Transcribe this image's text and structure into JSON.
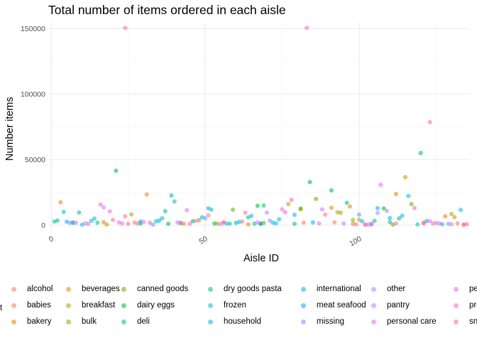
{
  "chart_data": {
    "type": "scatter",
    "title": "Total number of items ordered in each aisle",
    "xlabel": "Aisle ID",
    "ylabel": "Number items",
    "xlim": [
      -1,
      136
    ],
    "ylim": [
      -5000,
      155000
    ],
    "x_ticks": [
      0,
      50,
      100
    ],
    "x_tick_labels": [
      "0",
      "50",
      "100"
    ],
    "y_ticks": [
      0,
      50000,
      100000,
      150000
    ],
    "y_tick_labels": [
      "0",
      "50000",
      "100000",
      "150000"
    ],
    "grid": true,
    "legend_position": "bottom",
    "point_opacity": 0.55,
    "legend_cut_label": "t",
    "legend": [
      {
        "name": "alcohol",
        "color": "#F8766D"
      },
      {
        "name": "babies",
        "color": "#F07E4F"
      },
      {
        "name": "bakery",
        "color": "#E58700"
      },
      {
        "name": "beverages",
        "color": "#D39200"
      },
      {
        "name": "breakfast",
        "color": "#B79F00"
      },
      {
        "name": "bulk",
        "color": "#93AA00"
      },
      {
        "name": "canned goods",
        "color": "#5EB300"
      },
      {
        "name": "dairy eggs",
        "color": "#00BA38"
      },
      {
        "name": "deli",
        "color": "#00BF7D"
      },
      {
        "name": "dry goods pasta",
        "color": "#00C08D"
      },
      {
        "name": "frozen",
        "color": "#00BFC4"
      },
      {
        "name": "household",
        "color": "#00B9E3"
      },
      {
        "name": "international",
        "color": "#00B4EF"
      },
      {
        "name": "meat seafood",
        "color": "#00A9FF"
      },
      {
        "name": "missing",
        "color": "#619CFF"
      },
      {
        "name": "other",
        "color": "#9590FF"
      },
      {
        "name": "pantry",
        "color": "#C77CFF"
      },
      {
        "name": "personal care",
        "color": "#E76BF3"
      },
      {
        "name": "pet",
        "color": "#F564E3"
      },
      {
        "name": "produce",
        "color": "#FF61C3"
      },
      {
        "name": "snacks",
        "color": "#FF67A4"
      }
    ],
    "series": [
      {
        "name": "alcohol",
        "color": "#F8766D",
        "points": [
          [
            27,
            2000
          ],
          [
            28,
            1200
          ],
          [
            62,
            2700
          ],
          [
            124,
            1300
          ],
          [
            134,
            200
          ]
        ]
      },
      {
        "name": "babies",
        "color": "#F07E4F",
        "points": [
          [
            82,
            1900
          ],
          [
            92,
            2100
          ],
          [
            102,
            200
          ],
          [
            132,
            1300
          ]
        ]
      },
      {
        "name": "bakery",
        "color": "#E58700",
        "points": [
          [
            3,
            17400
          ],
          [
            17,
            2200
          ],
          [
            43,
            1100
          ],
          [
            112,
            23700
          ],
          [
            121,
            1900
          ],
          [
            128,
            6700
          ]
        ]
      },
      {
        "name": "beverages",
        "color": "#D39200",
        "points": [
          [
            7,
            2100
          ],
          [
            31,
            23400
          ],
          [
            64,
            600
          ],
          [
            77,
            16100
          ],
          [
            91,
            13300
          ],
          [
            97,
            14200
          ],
          [
            98,
            1000
          ],
          [
            115,
            36600
          ]
        ]
      },
      {
        "name": "breakfast",
        "color": "#B79F00",
        "points": [
          [
            26,
            8100
          ],
          [
            54,
            1200
          ],
          [
            93,
            9800
          ],
          [
            94,
            9400
          ],
          [
            100,
            4100
          ],
          [
            130,
            8400
          ],
          [
            131,
            6100
          ]
        ]
      },
      {
        "name": "bulk",
        "color": "#93AA00",
        "points": [
          [
            18,
            400
          ],
          [
            48,
            3800
          ],
          [
            81,
            12000
          ],
          [
            98,
            3900
          ]
        ]
      },
      {
        "name": "canned goods",
        "color": "#5EB300",
        "points": [
          [
            59,
            11700
          ],
          [
            69,
            1600
          ],
          [
            81,
            12700
          ],
          [
            86,
            20000
          ],
          [
            111,
            400
          ],
          [
            117,
            16000
          ]
        ]
      },
      {
        "name": "dairy eggs",
        "color": "#00BA38",
        "points": [
          [
            21,
            41500
          ],
          [
            38,
            1000
          ],
          [
            46,
            3000
          ],
          [
            53,
            1200
          ],
          [
            67,
            14700
          ],
          [
            68,
            1100
          ],
          [
            84,
            32800
          ],
          [
            91,
            26500
          ],
          [
            108,
            12700
          ],
          [
            120,
            55000
          ]
        ]
      },
      {
        "name": "deli",
        "color": "#00BF7D",
        "points": [
          [
            1,
            2700
          ],
          [
            2,
            3500
          ],
          [
            37,
            10600
          ],
          [
            69,
            14900
          ],
          [
            79,
            1000
          ],
          [
            96,
            17000
          ],
          [
            105,
            3200
          ],
          [
            113,
            5100
          ]
        ]
      },
      {
        "name": "dry goods pasta",
        "color": "#00C08D",
        "points": [
          [
            9,
            9600
          ],
          [
            15,
            1800
          ],
          [
            29,
            1100
          ],
          [
            39,
            22600
          ],
          [
            60,
            1700
          ],
          [
            64,
            5900
          ],
          [
            66,
            1100
          ],
          [
            110,
            2300
          ]
        ]
      },
      {
        "name": "frozen",
        "color": "#00BFC4",
        "points": [
          [
            4,
            10100
          ],
          [
            13,
            3300
          ],
          [
            34,
            2800
          ],
          [
            42,
            1400
          ],
          [
            52,
            11800
          ],
          [
            58,
            1100
          ],
          [
            74,
            4400
          ],
          [
            116,
            22300
          ],
          [
            119,
            500
          ]
        ]
      },
      {
        "name": "household",
        "color": "#00B9E3",
        "points": [
          [
            10,
            300
          ],
          [
            14,
            5000
          ],
          [
            40,
            18000
          ],
          [
            57,
            1100
          ],
          [
            65,
            7000
          ],
          [
            73,
            1300
          ],
          [
            79,
            7900
          ],
          [
            104,
            500
          ],
          [
            114,
            7100
          ],
          [
            133,
            11600
          ]
        ]
      },
      {
        "name": "international",
        "color": "#00B4EF",
        "points": [
          [
            5,
            2600
          ],
          [
            29,
            2800
          ],
          [
            36,
            5200
          ],
          [
            51,
            12800
          ],
          [
            61,
            2400
          ],
          [
            72,
            1900
          ],
          [
            85,
            2000
          ],
          [
            101,
            2800
          ],
          [
            110,
            5400
          ],
          [
            127,
            700
          ]
        ]
      },
      {
        "name": "meat seafood",
        "color": "#00A9FF",
        "points": [
          [
            7,
            1800
          ],
          [
            35,
            3400
          ],
          [
            49,
            6000
          ],
          [
            68,
            1000
          ],
          [
            106,
            12900
          ],
          [
            122,
            3100
          ]
        ]
      },
      {
        "name": "missing",
        "color": "#619CFF",
        "points": [
          [
            6,
            1700
          ],
          [
            33,
            400
          ],
          [
            50,
            5200
          ],
          [
            100,
            8000
          ],
          [
            129,
            1000
          ]
        ]
      },
      {
        "name": "other",
        "color": "#9590FF",
        "points": [
          [
            8,
            1700
          ],
          [
            56,
            1900
          ],
          [
            71,
            3400
          ],
          [
            106,
            9300
          ],
          [
            109,
            10800
          ]
        ]
      },
      {
        "name": "pantry",
        "color": "#C77CFF",
        "points": [
          [
            11,
            1300
          ],
          [
            17,
            13500
          ],
          [
            41,
            2000
          ],
          [
            70,
            9500
          ],
          [
            88,
            12000
          ],
          [
            95,
            1200
          ],
          [
            103,
            500
          ],
          [
            125,
            1600
          ]
        ]
      },
      {
        "name": "personal care",
        "color": "#E76BF3",
        "points": [
          [
            16,
            15700
          ],
          [
            19,
            10500
          ],
          [
            22,
            2100
          ],
          [
            44,
            11400
          ],
          [
            47,
            3200
          ],
          [
            67,
            2100
          ],
          [
            87,
            1300
          ],
          [
            102,
            400
          ],
          [
            107,
            30700
          ],
          [
            123,
            3000
          ]
        ]
      },
      {
        "name": "pet",
        "color": "#F564E3",
        "points": [
          [
            12,
            1000
          ],
          [
            23,
            1200
          ],
          [
            30,
            2500
          ],
          [
            42,
            1800
          ],
          [
            55,
            800
          ],
          [
            75,
            12000
          ],
          [
            104,
            1000
          ],
          [
            126,
            1300
          ],
          [
            130,
            600
          ]
        ]
      },
      {
        "name": "produce",
        "color": "#FF61C3",
        "points": [
          [
            24,
            150500
          ],
          [
            32,
            1800
          ],
          [
            45,
            1000
          ],
          [
            63,
            9500
          ],
          [
            76,
            9800
          ],
          [
            83,
            150500
          ],
          [
            99,
            500
          ],
          [
            118,
            13000
          ],
          [
            121,
            1300
          ],
          [
            134,
            500
          ]
        ]
      },
      {
        "name": "snacks",
        "color": "#FF67A4",
        "points": [
          [
            20,
            4000
          ],
          [
            24,
            6700
          ],
          [
            25,
            1000
          ],
          [
            51,
            7500
          ],
          [
            56,
            2100
          ],
          [
            78,
            19300
          ],
          [
            89,
            8000
          ],
          [
            112,
            1300
          ],
          [
            123,
            78500
          ],
          [
            135,
            700
          ]
        ]
      }
    ]
  }
}
